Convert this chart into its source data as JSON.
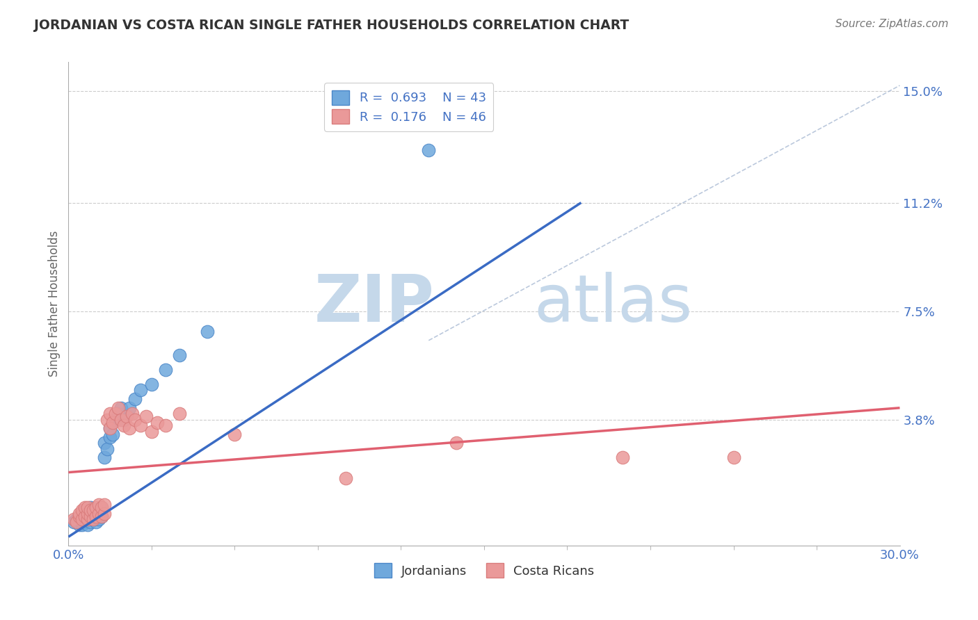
{
  "title": "JORDANIAN VS COSTA RICAN SINGLE FATHER HOUSEHOLDS CORRELATION CHART",
  "source": "Source: ZipAtlas.com",
  "ylabel": "Single Father Households",
  "xlabel": "",
  "xlim": [
    0.0,
    0.3
  ],
  "ylim": [
    -0.005,
    0.16
  ],
  "x_tick_labels": [
    "0.0%",
    "30.0%"
  ],
  "y_tick_positions": [
    0.038,
    0.075,
    0.112,
    0.15
  ],
  "y_tick_labels": [
    "3.8%",
    "7.5%",
    "11.2%",
    "15.0%"
  ],
  "jordanians": {
    "R": 0.693,
    "N": 43,
    "color": "#6fa8dc",
    "color_edge": "#4a86c8",
    "x": [
      0.002,
      0.003,
      0.004,
      0.004,
      0.005,
      0.005,
      0.005,
      0.006,
      0.006,
      0.006,
      0.007,
      0.007,
      0.007,
      0.008,
      0.008,
      0.008,
      0.009,
      0.009,
      0.01,
      0.01,
      0.01,
      0.011,
      0.011,
      0.012,
      0.012,
      0.013,
      0.013,
      0.014,
      0.015,
      0.015,
      0.016,
      0.017,
      0.018,
      0.019,
      0.02,
      0.022,
      0.024,
      0.026,
      0.03,
      0.035,
      0.04,
      0.05,
      0.13
    ],
    "y": [
      0.003,
      0.004,
      0.002,
      0.005,
      0.002,
      0.003,
      0.006,
      0.003,
      0.004,
      0.007,
      0.002,
      0.004,
      0.006,
      0.003,
      0.005,
      0.008,
      0.004,
      0.006,
      0.003,
      0.005,
      0.007,
      0.004,
      0.007,
      0.005,
      0.008,
      0.025,
      0.03,
      0.028,
      0.032,
      0.035,
      0.033,
      0.038,
      0.04,
      0.042,
      0.038,
      0.042,
      0.045,
      0.048,
      0.05,
      0.055,
      0.06,
      0.068,
      0.13
    ]
  },
  "costa_ricans": {
    "R": 0.176,
    "N": 46,
    "color": "#ea9999",
    "color_edge": "#d97b7b",
    "x": [
      0.002,
      0.003,
      0.004,
      0.004,
      0.005,
      0.005,
      0.006,
      0.006,
      0.007,
      0.007,
      0.007,
      0.008,
      0.008,
      0.009,
      0.009,
      0.01,
      0.01,
      0.011,
      0.011,
      0.012,
      0.012,
      0.013,
      0.013,
      0.014,
      0.015,
      0.015,
      0.016,
      0.017,
      0.018,
      0.019,
      0.02,
      0.021,
      0.022,
      0.023,
      0.024,
      0.026,
      0.028,
      0.03,
      0.032,
      0.035,
      0.04,
      0.06,
      0.1,
      0.14,
      0.2,
      0.24
    ],
    "y": [
      0.004,
      0.003,
      0.005,
      0.006,
      0.004,
      0.007,
      0.005,
      0.008,
      0.004,
      0.006,
      0.008,
      0.005,
      0.007,
      0.004,
      0.007,
      0.005,
      0.008,
      0.006,
      0.009,
      0.005,
      0.008,
      0.006,
      0.009,
      0.038,
      0.035,
      0.04,
      0.037,
      0.04,
      0.042,
      0.038,
      0.036,
      0.039,
      0.035,
      0.04,
      0.038,
      0.036,
      0.039,
      0.034,
      0.037,
      0.036,
      0.04,
      0.033,
      0.018,
      0.03,
      0.025,
      0.025
    ]
  },
  "blue_line": {
    "x0": 0.0,
    "y0": -0.002,
    "x1": 0.185,
    "y1": 0.112
  },
  "pink_line": {
    "x0": 0.0,
    "y0": 0.02,
    "x1": 0.3,
    "y1": 0.042
  },
  "diag_line": {
    "x0": 0.13,
    "y0": 0.065,
    "x1": 0.3,
    "y1": 0.152
  },
  "watermark_zip": "ZIP",
  "watermark_atlas": "atlas",
  "watermark_color_zip": "#c5d8ea",
  "watermark_color_atlas": "#c5d8ea",
  "background_color": "#ffffff",
  "grid_color": "#cccccc",
  "title_color": "#333333",
  "axis_label_color": "#666666",
  "tick_label_color": "#4472c4",
  "legend_r_color": "#4472c4"
}
